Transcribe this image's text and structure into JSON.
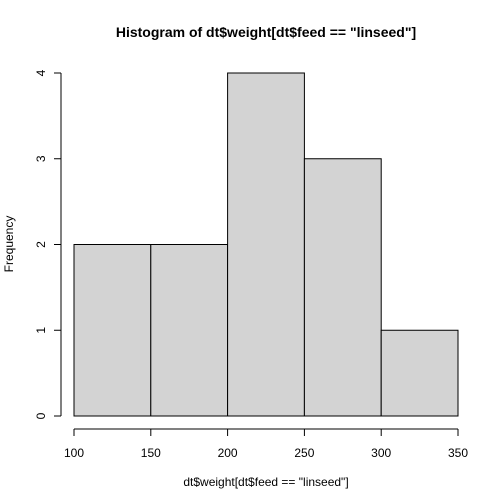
{
  "chart_data": {
    "type": "bar",
    "title": "Histogram of dt$weight[dt$feed == \"linseed\"]",
    "xlabel": "dt$weight[dt$feed == \"linseed\"]",
    "ylabel": "Frequency",
    "bins": [
      [
        100,
        150
      ],
      [
        150,
        200
      ],
      [
        200,
        250
      ],
      [
        250,
        300
      ],
      [
        300,
        350
      ]
    ],
    "values": [
      2,
      2,
      4,
      3,
      1
    ],
    "xlim": [
      100,
      350
    ],
    "ylim": [
      0,
      4
    ],
    "xticks": [
      100,
      150,
      200,
      250,
      300,
      350
    ],
    "yticks": [
      0,
      1,
      2,
      3,
      4
    ],
    "bar_fill": "#d3d3d3",
    "grid": false
  }
}
